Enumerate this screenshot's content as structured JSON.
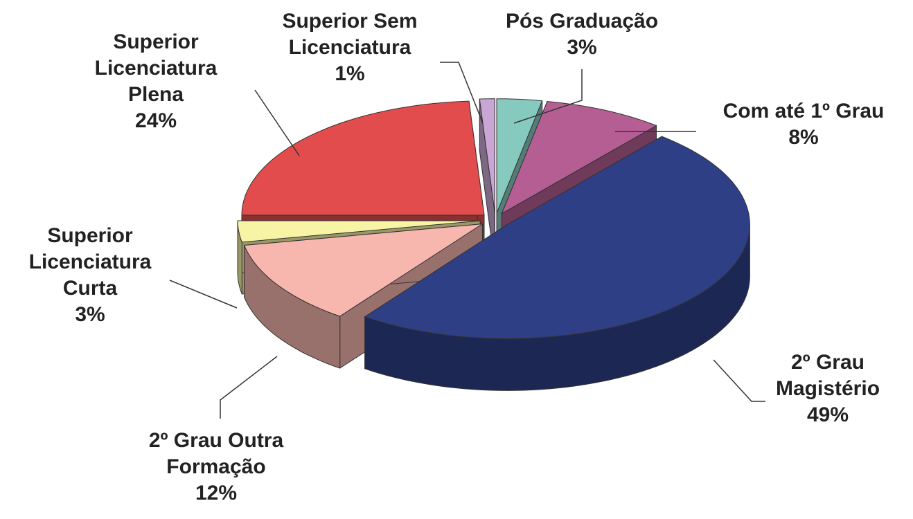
{
  "chart_data": {
    "type": "pie3d",
    "categories": [
      "Pós Graduação",
      "Com até 1º Grau",
      "2º Grau Magistério",
      "2º Grau Outra Formação",
      "Superior Licenciatura Curta",
      "Superior Licenciatura Plena",
      "Superior Sem Licenciatura"
    ],
    "values": [
      3,
      8,
      49,
      12,
      3,
      24,
      1
    ],
    "value_labels": [
      "3%",
      "8%",
      "49%",
      "12%",
      "3%",
      "24%",
      "1%"
    ],
    "colors": [
      "#86c9bf",
      "#b55e93",
      "#2e3f86",
      "#f7b6ae",
      "#f8f4a6",
      "#e24c4c",
      "#c9a6d3"
    ]
  }
}
